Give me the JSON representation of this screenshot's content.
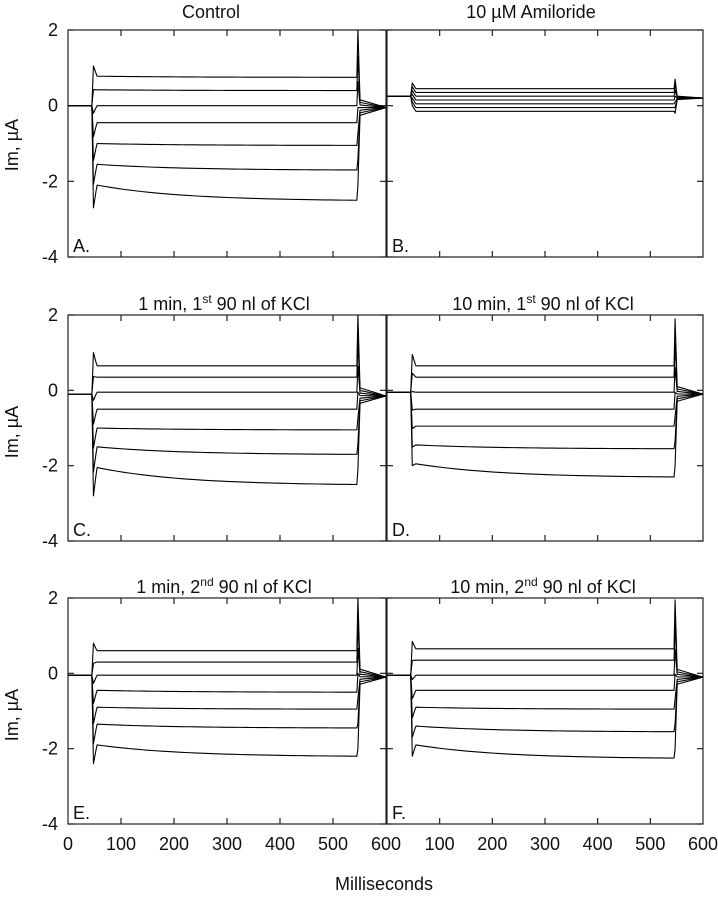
{
  "figure": {
    "x_axis_label": "Milliseconds",
    "y_axis_label": "Im, µA",
    "x_ticks": [
      "0",
      "100",
      "200",
      "300",
      "400",
      "500",
      "600"
    ],
    "y_ticks": [
      "2",
      "0",
      "-2",
      "-4"
    ],
    "colors": {
      "trace": "#000000",
      "frame": "#222222",
      "background": "#ffffff"
    }
  },
  "chart_data": [
    {
      "type": "line",
      "panel": "A.",
      "title": {
        "prefix": "Control",
        "sup": "",
        "suffix": ""
      },
      "xlim": [
        0,
        600
      ],
      "ylim": [
        -4,
        2
      ],
      "xlabel": "",
      "ylabel": "Im, µA",
      "baseline_before": 0.0,
      "baseline_after": -0.05,
      "pulse_start_ms": 45,
      "pulse_end_ms": 545,
      "steps_end_values": [
        0.75,
        0.4,
        0.0,
        -0.45,
        -1.05,
        -1.7,
        -2.5
      ],
      "steps_start_values": [
        0.78,
        0.42,
        0.0,
        -0.45,
        -1.0,
        -1.55,
        -2.1
      ],
      "peak_values": [
        1.05,
        -2.7
      ],
      "tail_peak_values": [
        2.0,
        -2.1
      ],
      "gridlines": false
    },
    {
      "type": "line",
      "panel": "B.",
      "title": {
        "prefix": "10 µM Amiloride",
        "sup": "",
        "suffix": ""
      },
      "xlim": [
        0,
        600
      ],
      "ylim": [
        -4,
        2
      ],
      "xlabel": "",
      "ylabel": "",
      "baseline_before": 0.25,
      "baseline_after": 0.2,
      "pulse_start_ms": 45,
      "pulse_end_ms": 545,
      "steps_end_values": [
        0.45,
        0.35,
        0.25,
        0.15,
        0.05,
        -0.05,
        -0.15
      ],
      "steps_start_values": [
        0.45,
        0.35,
        0.25,
        0.15,
        0.05,
        -0.05,
        -0.15
      ],
      "peak_values": [
        0.6,
        0.0
      ],
      "tail_peak_values": [
        0.7,
        -0.2
      ],
      "gridlines": false
    },
    {
      "type": "line",
      "panel": "C.",
      "title": {
        "prefix": "1 min, 1",
        "sup": "st",
        "suffix": " 90 nl of KCl"
      },
      "xlim": [
        0,
        600
      ],
      "ylim": [
        -4,
        2
      ],
      "xlabel": "",
      "ylabel": "Im, µA",
      "baseline_before": -0.1,
      "baseline_after": -0.15,
      "pulse_start_ms": 45,
      "pulse_end_ms": 545,
      "steps_end_values": [
        0.65,
        0.35,
        -0.05,
        -0.5,
        -1.05,
        -1.7,
        -2.5
      ],
      "steps_start_values": [
        0.65,
        0.35,
        -0.05,
        -0.5,
        -1.0,
        -1.5,
        -2.05
      ],
      "peak_values": [
        1.0,
        -2.8
      ],
      "tail_peak_values": [
        2.0,
        -2.1
      ],
      "gridlines": false
    },
    {
      "type": "line",
      "panel": "D.",
      "title": {
        "prefix": "10 min, 1",
        "sup": "st",
        "suffix": " 90 nl of KCl"
      },
      "xlim": [
        0,
        600
      ],
      "ylim": [
        -4,
        2
      ],
      "xlabel": "",
      "ylabel": "",
      "baseline_before": -0.05,
      "baseline_after": -0.1,
      "pulse_start_ms": 45,
      "pulse_end_ms": 545,
      "steps_end_values": [
        0.65,
        0.35,
        -0.05,
        -0.5,
        -0.95,
        -1.55,
        -2.3
      ],
      "steps_start_values": [
        0.65,
        0.35,
        -0.05,
        -0.5,
        -0.95,
        -1.45,
        -1.95
      ],
      "peak_values": [
        0.95,
        -2.0
      ],
      "tail_peak_values": [
        1.9,
        -2.0
      ],
      "gridlines": false
    },
    {
      "type": "line",
      "panel": "E.",
      "title": {
        "prefix": "1 min, 2",
        "sup": "nd",
        "suffix": " 90 nl of KCl"
      },
      "xlim": [
        0,
        600
      ],
      "ylim": [
        -4,
        2
      ],
      "xlabel": "",
      "ylabel": "Im, µA",
      "baseline_before": -0.05,
      "baseline_after": -0.1,
      "pulse_start_ms": 45,
      "pulse_end_ms": 545,
      "steps_end_values": [
        0.6,
        0.3,
        -0.05,
        -0.5,
        -0.95,
        -1.45,
        -2.2
      ],
      "steps_start_values": [
        0.6,
        0.3,
        -0.05,
        -0.45,
        -0.9,
        -1.35,
        -1.9
      ],
      "peak_values": [
        0.8,
        -2.4
      ],
      "tail_peak_values": [
        2.0,
        -2.0
      ],
      "gridlines": false
    },
    {
      "type": "line",
      "panel": "F.",
      "title": {
        "prefix": "10 min, 2",
        "sup": "nd",
        "suffix": " 90 nl of KCl"
      },
      "xlim": [
        0,
        600
      ],
      "ylim": [
        -4,
        2
      ],
      "xlabel": "Milliseconds",
      "ylabel": "",
      "baseline_before": -0.05,
      "baseline_after": -0.1,
      "pulse_start_ms": 45,
      "pulse_end_ms": 545,
      "steps_end_values": [
        0.65,
        0.35,
        -0.05,
        -0.45,
        -0.95,
        -1.55,
        -2.25
      ],
      "steps_start_values": [
        0.65,
        0.35,
        -0.05,
        -0.45,
        -0.9,
        -1.4,
        -1.9
      ],
      "peak_values": [
        0.85,
        -2.2
      ],
      "tail_peak_values": [
        1.95,
        -2.0
      ],
      "gridlines": false
    }
  ]
}
